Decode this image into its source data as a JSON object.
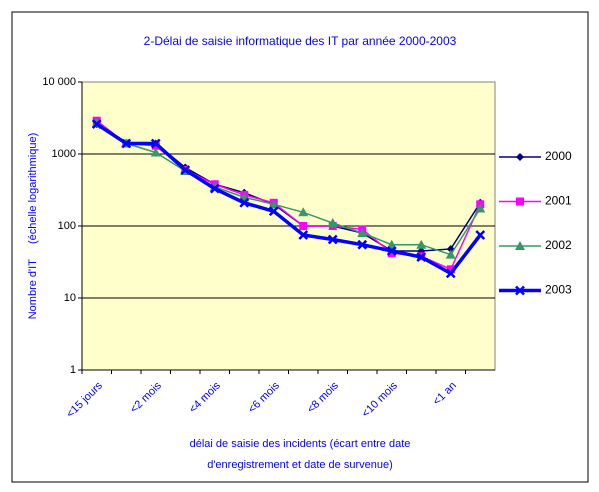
{
  "chart_data": {
    "type": "line",
    "title": "2-Délai de saisie informatique des IT par année 2000-2003",
    "x_label": [
      "délai de saisie des incidents (écart entre date",
      "d'enregistrement et date de survenue)"
    ],
    "y_label": "Nombre d'IT     (échelle logarithmique)",
    "categories": [
      "<15 jours",
      null,
      "<2 mois",
      null,
      "<4 mois",
      null,
      "<6 mois",
      null,
      "<8 mois",
      null,
      "<10 mois",
      null,
      "<1 an",
      null
    ],
    "log_scale": true,
    "ylim": [
      1,
      10000
    ],
    "yticks": [
      1,
      10,
      100,
      1000,
      {
        "value": 10000,
        "label": "10 000"
      }
    ],
    "grid": true,
    "legend": "right",
    "series": [
      {
        "name": "2000",
        "color": "#000080",
        "marker": "diamond",
        "values": [
          2600,
          1400,
          1400,
          650,
          380,
          290,
          200,
          100,
          100,
          80,
          45,
          45,
          48,
          210
        ]
      },
      {
        "name": "2001",
        "color": "#FF00FF",
        "marker": "square",
        "values": [
          2900,
          1400,
          1300,
          600,
          380,
          270,
          210,
          100,
          100,
          90,
          42,
          38,
          25,
          200
        ]
      },
      {
        "name": "2002",
        "color": "#339966",
        "marker": "triangle",
        "values": [
          2700,
          1400,
          1050,
          580,
          350,
          250,
          200,
          155,
          110,
          80,
          55,
          55,
          40,
          175
        ]
      },
      {
        "name": "2003",
        "color": "#0000FF",
        "marker": "x",
        "values": [
          2600,
          1400,
          1400,
          600,
          330,
          210,
          160,
          75,
          65,
          55,
          45,
          37,
          22,
          75
        ]
      }
    ]
  }
}
